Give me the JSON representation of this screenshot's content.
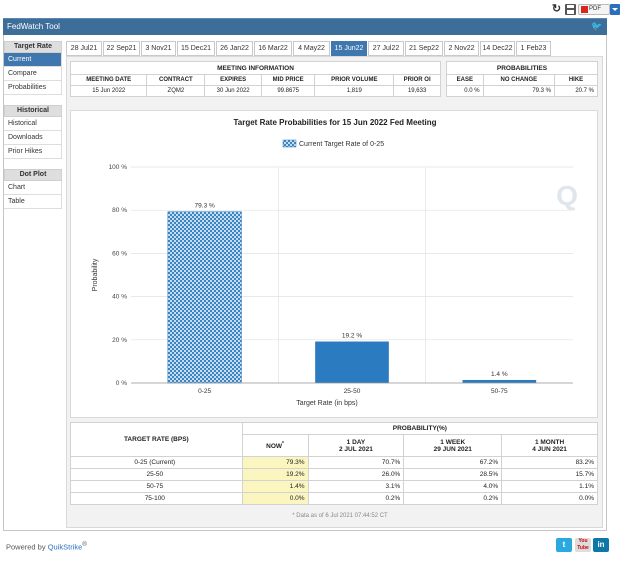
{
  "app_title": "FedWatch Tool",
  "toolbar": {
    "pdf_label": "PDF"
  },
  "sidebar": {
    "groups": [
      {
        "title": "Target Rate",
        "items": [
          "Current",
          "Compare",
          "Probabilities"
        ]
      },
      {
        "title": "Historical",
        "items": [
          "Historical",
          "Downloads",
          "Prior Hikes"
        ]
      },
      {
        "title": "Dot Plot",
        "items": [
          "Chart",
          "Table"
        ]
      }
    ],
    "active_item": "Current"
  },
  "tabs": [
    "28 Jul21",
    "22 Sep21",
    "3 Nov21",
    "15 Dec21",
    "26 Jan22",
    "16 Mar22",
    "4 May22",
    "15 Jun22",
    "27 Jul22",
    "21 Sep22",
    "2 Nov22",
    "14 Dec22",
    "1 Feb23"
  ],
  "active_tab": "15 Jun22",
  "meeting_info": {
    "title": "MEETING INFORMATION",
    "headers": [
      "MEETING DATE",
      "CONTRACT",
      "EXPIRES",
      "MID PRICE",
      "PRIOR VOLUME",
      "PRIOR OI"
    ],
    "values": [
      "15 Jun 2022",
      "ZQM2",
      "30 Jun 2022",
      "99.8675",
      "1,819",
      "19,633"
    ]
  },
  "probabilities": {
    "title": "PROBABILITIES",
    "headers": [
      "EASE",
      "NO CHANGE",
      "HIKE"
    ],
    "values": [
      "0.0 %",
      "79.3 %",
      "20.7 %"
    ]
  },
  "chart": {
    "legend_label": "Current Target Rate of 0-25",
    "watermark": "Q"
  },
  "chart_data": {
    "type": "bar",
    "title": "Target Rate Probabilities for 15 Jun 2022 Fed Meeting",
    "xlabel": "Target Rate (in bps)",
    "ylabel": "Probability",
    "categories": [
      "0-25",
      "25-50",
      "50-75"
    ],
    "values": [
      79.3,
      19.2,
      1.4
    ],
    "data_labels": [
      "79.3 %",
      "19.2 %",
      "1.4 %"
    ],
    "ylim": [
      0,
      100
    ],
    "yticks": [
      0,
      20,
      40,
      60,
      80,
      100
    ],
    "ytick_labels": [
      "0 %",
      "20 %",
      "40 %",
      "60 %",
      "80 %",
      "100 %"
    ],
    "highlight_category": "0-25",
    "colors": {
      "bar": "#2a7bbf",
      "highlight": "#2a7bbf",
      "grid": "#e2e2e2"
    },
    "grid": true,
    "legend_position": "top"
  },
  "target_table": {
    "col_header_main": "TARGET RATE (BPS)",
    "col_header_group": "PROBABILITY(%)",
    "sub_headers": [
      {
        "line1": "NOW",
        "line2": "",
        "marker": "*"
      },
      {
        "line1": "1 DAY",
        "line2": "2 JUL 2021",
        "marker": ""
      },
      {
        "line1": "1 WEEK",
        "line2": "29 JUN 2021",
        "marker": ""
      },
      {
        "line1": "1 MONTH",
        "line2": "4 JUN 2021",
        "marker": ""
      }
    ],
    "rows": [
      {
        "rate": "0-25 (Current)",
        "values": [
          "79.3%",
          "70.7%",
          "67.2%",
          "83.2%"
        ]
      },
      {
        "rate": "25-50",
        "values": [
          "19.2%",
          "26.0%",
          "28.5%",
          "15.7%"
        ]
      },
      {
        "rate": "50-75",
        "values": [
          "1.4%",
          "3.1%",
          "4.0%",
          "1.1%"
        ]
      },
      {
        "rate": "75-100",
        "values": [
          "0.0%",
          "0.2%",
          "0.2%",
          "0.0%"
        ]
      }
    ],
    "footnote": "* Data as of 6 Jul 2021 07:44:52 CT"
  },
  "footer": {
    "powered_prefix": "Powered by ",
    "powered_brand": "QuikStrike",
    "powered_mark": "®",
    "youtube_label": "You Tube"
  }
}
